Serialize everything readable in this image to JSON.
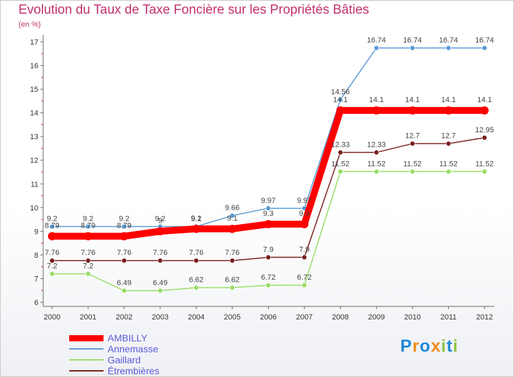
{
  "chart_data": {
    "type": "line",
    "title": "Evolution du Taux de Taxe Foncière sur les Propriétés Bâties",
    "unit": "(en %)",
    "ylim": [
      6,
      17
    ],
    "yticks": [
      "6",
      "7",
      "8",
      "9",
      "10",
      "11",
      "12",
      "13",
      "14",
      "15",
      "16",
      "17"
    ],
    "categories": [
      "2000",
      "2001",
      "2002",
      "2003",
      "2004",
      "2005",
      "2006",
      "2007",
      "2008",
      "2009",
      "2010",
      "2011",
      "2012"
    ],
    "series": [
      {
        "name": "AMBILLY",
        "color": "#ff0000",
        "values": [
          8.79,
          8.79,
          8.79,
          9.0,
          9.1,
          9.1,
          9.3,
          9.3,
          14.1,
          14.1,
          14.1,
          14.1,
          14.1
        ],
        "labels": [
          "8.79",
          "8.79",
          "8.79",
          "9",
          "9.1",
          "9.1",
          "9.3",
          "9.3",
          "14.1",
          "14.1",
          "14.1",
          "14.1",
          "14.1"
        ]
      },
      {
        "name": "Annemasse",
        "color": "#5b9bd5",
        "values": [
          9.2,
          9.2,
          9.2,
          9.2,
          9.2,
          9.66,
          9.97,
          9.97,
          14.56,
          16.74,
          16.74,
          16.74,
          16.74
        ],
        "labels": [
          "9.2",
          "9.2",
          "9.2",
          "9.2",
          "9.2",
          "9.66",
          "9.97",
          "9.97",
          "14.56",
          "16.74",
          "16.74",
          "16.74",
          "16.74"
        ]
      },
      {
        "name": "Gaillard",
        "color": "#99dd66",
        "values": [
          7.2,
          7.2,
          6.49,
          6.49,
          6.62,
          6.62,
          6.72,
          6.72,
          11.52,
          11.52,
          11.52,
          11.52,
          11.52
        ],
        "labels": [
          "7.2",
          "7.2",
          "6.49",
          "6.49",
          "6.62",
          "6.62",
          "6.72",
          "6.72",
          "11.52",
          "11.52",
          "11.52",
          "11.52",
          "11.52"
        ]
      },
      {
        "name": "Étrembières",
        "color": "#7a1f1f",
        "values": [
          7.76,
          7.76,
          7.76,
          7.76,
          7.76,
          7.76,
          7.9,
          7.9,
          12.33,
          12.33,
          12.7,
          12.7,
          12.95
        ],
        "labels": [
          "7.76",
          "7.76",
          "7.76",
          "7.76",
          "7.76",
          "7.76",
          "7.9",
          "7.9",
          "12.33",
          "12.33",
          "12.7",
          "12.7",
          "12.95"
        ]
      }
    ],
    "legend_position": "bottom-left"
  },
  "legend": {
    "items": [
      {
        "label": "AMBILLY",
        "color": "#ff0000",
        "text_color": "#5a5ad8"
      },
      {
        "label": "Annemasse",
        "color": "#5b9bd5",
        "text_color": "#5a5ad8"
      },
      {
        "label": "Gaillard",
        "color": "#99dd66",
        "text_color": "#5a5ad8"
      },
      {
        "label": "Étrembières",
        "color": "#7a1f1f",
        "text_color": "#5a5ad8"
      }
    ]
  },
  "logo": {
    "text": "Proxiti",
    "colors": [
      "#1e88d8",
      "#f08a1c",
      "#1e88d8",
      "#f08a1c",
      "#8bc53f",
      "#1e88d8",
      "#8bc53f"
    ]
  }
}
